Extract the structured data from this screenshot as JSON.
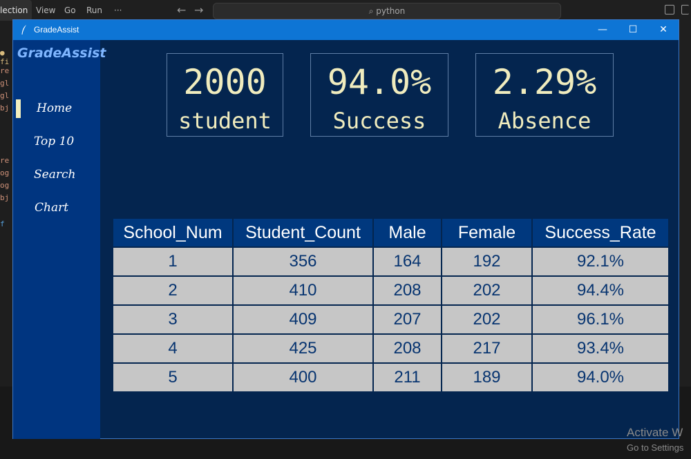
{
  "vscode": {
    "menus": [
      "lection",
      "View",
      "Go",
      "Run",
      "···"
    ],
    "search_text": "python"
  },
  "overlay": {
    "activate_line1": "Activate W",
    "activate_line2": "Go to Settings"
  },
  "window": {
    "title": "GradeAssist",
    "controls": [
      "—",
      "☐",
      "✕"
    ]
  },
  "sidebar": {
    "brand": "GradeAssist",
    "items": [
      {
        "label": "Home",
        "active": true
      },
      {
        "label": "Top 10",
        "active": false
      },
      {
        "label": "Search",
        "active": false
      },
      {
        "label": "Chart",
        "active": false
      }
    ]
  },
  "stats": [
    {
      "value": "2000",
      "label": "student"
    },
    {
      "value": "94.0%",
      "label": "Success"
    },
    {
      "value": "2.29%",
      "label": "Absence"
    }
  ],
  "table": {
    "headers": [
      "School_Num",
      "Student_Count",
      "Male",
      "Female",
      "Success_Rate"
    ],
    "rows": [
      [
        "1",
        "356",
        "164",
        "192",
        "92.1%"
      ],
      [
        "2",
        "410",
        "208",
        "202",
        "94.4%"
      ],
      [
        "3",
        "409",
        "207",
        "202",
        "96.1%"
      ],
      [
        "4",
        "425",
        "208",
        "217",
        "93.4%"
      ],
      [
        "5",
        "400",
        "211",
        "189",
        "94.0%"
      ]
    ]
  },
  "colors": {
    "window_bg": "#04254f",
    "sidebar_bg": "#003580",
    "titlebar_bg": "#0e75d5",
    "stat_text": "#f0ecbe",
    "table_header_bg": "#00387e",
    "table_cell_bg": "#c6c6c6",
    "table_cell_text": "#073470"
  }
}
